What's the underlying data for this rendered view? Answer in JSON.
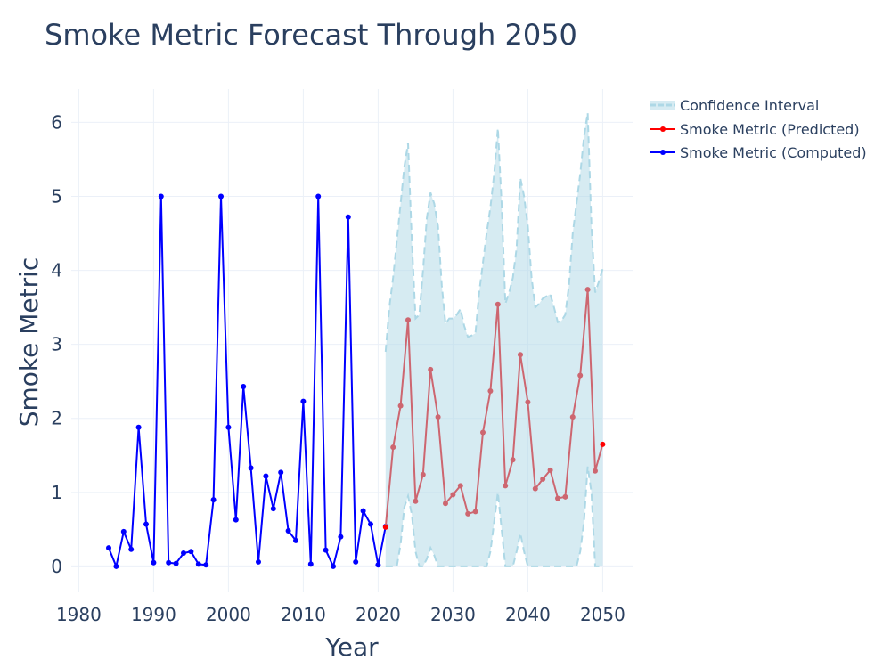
{
  "chart_data": {
    "type": "line",
    "title": "Smoke Metric Forecast Through 2050",
    "xlabel": "Year",
    "ylabel": "Smoke Metric",
    "xlim": [
      1979,
      2054
    ],
    "ylim": [
      -0.35,
      6.45
    ],
    "x_ticks": [
      1980,
      1990,
      2000,
      2010,
      2020,
      2030,
      2040,
      2050
    ],
    "y_ticks": [
      0,
      1,
      2,
      3,
      4,
      5,
      6
    ],
    "grid": true,
    "legend_position": "top-right",
    "legend": [
      "Confidence Interval",
      "Smoke Metric (Predicted)",
      "Smoke Metric (Computed)"
    ],
    "series": [
      {
        "name": "Smoke Metric (Computed)",
        "color": "#0000ff",
        "x": [
          1984,
          1985,
          1986,
          1987,
          1988,
          1989,
          1990,
          1991,
          1992,
          1993,
          1994,
          1995,
          1996,
          1997,
          1998,
          1999,
          2000,
          2001,
          2002,
          2003,
          2004,
          2005,
          2006,
          2007,
          2008,
          2009,
          2010,
          2011,
          2012,
          2013,
          2014,
          2015,
          2016,
          2017,
          2018,
          2019,
          2020,
          2021
        ],
        "y": [
          0.25,
          0.0,
          0.47,
          0.23,
          1.88,
          0.57,
          0.05,
          5.0,
          0.05,
          0.04,
          0.18,
          0.2,
          0.03,
          0.02,
          0.9,
          5.0,
          1.88,
          0.63,
          2.43,
          1.33,
          0.06,
          1.22,
          0.78,
          1.27,
          0.48,
          0.35,
          2.23,
          0.03,
          5.0,
          0.22,
          0.0,
          0.4,
          4.72,
          0.06,
          0.75,
          0.57,
          0.02,
          0.54
        ]
      },
      {
        "name": "Smoke Metric (Predicted)",
        "color": "#ff0000",
        "line_color": "#cd6670",
        "x": [
          2021,
          2022,
          2023,
          2024,
          2025,
          2026,
          2027,
          2028,
          2029,
          2030,
          2031,
          2032,
          2033,
          2034,
          2035,
          2036,
          2037,
          2038,
          2039,
          2040,
          2041,
          2042,
          2043,
          2044,
          2045,
          2046,
          2047,
          2048,
          2049,
          2050
        ],
        "y": [
          0.53,
          1.61,
          2.17,
          3.33,
          0.88,
          1.24,
          2.66,
          2.02,
          0.85,
          0.97,
          1.09,
          0.71,
          0.74,
          1.81,
          2.37,
          3.54,
          1.09,
          1.44,
          2.86,
          2.22,
          1.05,
          1.18,
          1.3,
          0.92,
          0.94,
          2.02,
          2.58,
          3.74,
          1.29,
          1.65
        ]
      },
      {
        "name": "Confidence Interval",
        "color": "#add8e6",
        "fill": "rgba(173,216,230,0.5)",
        "x": [
          2021,
          2021.5,
          2022,
          2022.5,
          2023,
          2023.5,
          2024,
          2024.5,
          2025,
          2025.5,
          2026,
          2026.5,
          2027,
          2027.5,
          2028,
          2028.5,
          2029,
          2029.5,
          2030,
          2030.5,
          2031,
          2031.5,
          2032,
          2032.5,
          2033,
          2033.5,
          2034,
          2034.5,
          2035,
          2035.5,
          2036,
          2036.5,
          2037,
          2037.5,
          2038,
          2038.5,
          2039,
          2039.5,
          2040,
          2040.5,
          2041,
          2041.5,
          2042,
          2042.5,
          2043,
          2043.5,
          2044,
          2044.5,
          2045,
          2045.5,
          2046,
          2046.5,
          2047,
          2047.5,
          2048,
          2048.5,
          2049,
          2049.5,
          2050
        ],
        "upper": [
          2.9,
          3.5,
          3.9,
          4.4,
          4.9,
          5.4,
          5.72,
          4.4,
          3.35,
          3.4,
          4.0,
          4.7,
          5.05,
          4.9,
          4.6,
          3.8,
          3.28,
          3.35,
          3.35,
          3.4,
          3.48,
          3.25,
          3.1,
          3.12,
          3.15,
          3.7,
          4.1,
          4.5,
          4.85,
          5.3,
          5.92,
          4.9,
          3.55,
          3.7,
          3.9,
          4.3,
          5.25,
          5.0,
          4.6,
          3.9,
          3.5,
          3.55,
          3.62,
          3.65,
          3.68,
          3.5,
          3.3,
          3.32,
          3.4,
          3.8,
          4.5,
          4.9,
          5.3,
          5.8,
          6.13,
          4.6,
          3.7,
          3.85,
          4.02
        ],
        "lower": [
          0,
          0,
          0,
          0,
          0.3,
          0.8,
          0.95,
          0.7,
          0.2,
          0,
          0,
          0.1,
          0.25,
          0.15,
          0,
          0,
          0,
          0,
          0,
          0,
          0,
          0,
          0,
          0,
          0,
          0,
          0,
          0,
          0.2,
          0.6,
          1.0,
          0.5,
          0,
          0,
          0,
          0.2,
          0.45,
          0.2,
          0,
          0,
          0,
          0,
          0,
          0,
          0,
          0,
          0,
          0,
          0,
          0,
          0,
          0,
          0.2,
          0.6,
          1.35,
          1.0,
          0,
          0,
          0
        ]
      }
    ]
  }
}
